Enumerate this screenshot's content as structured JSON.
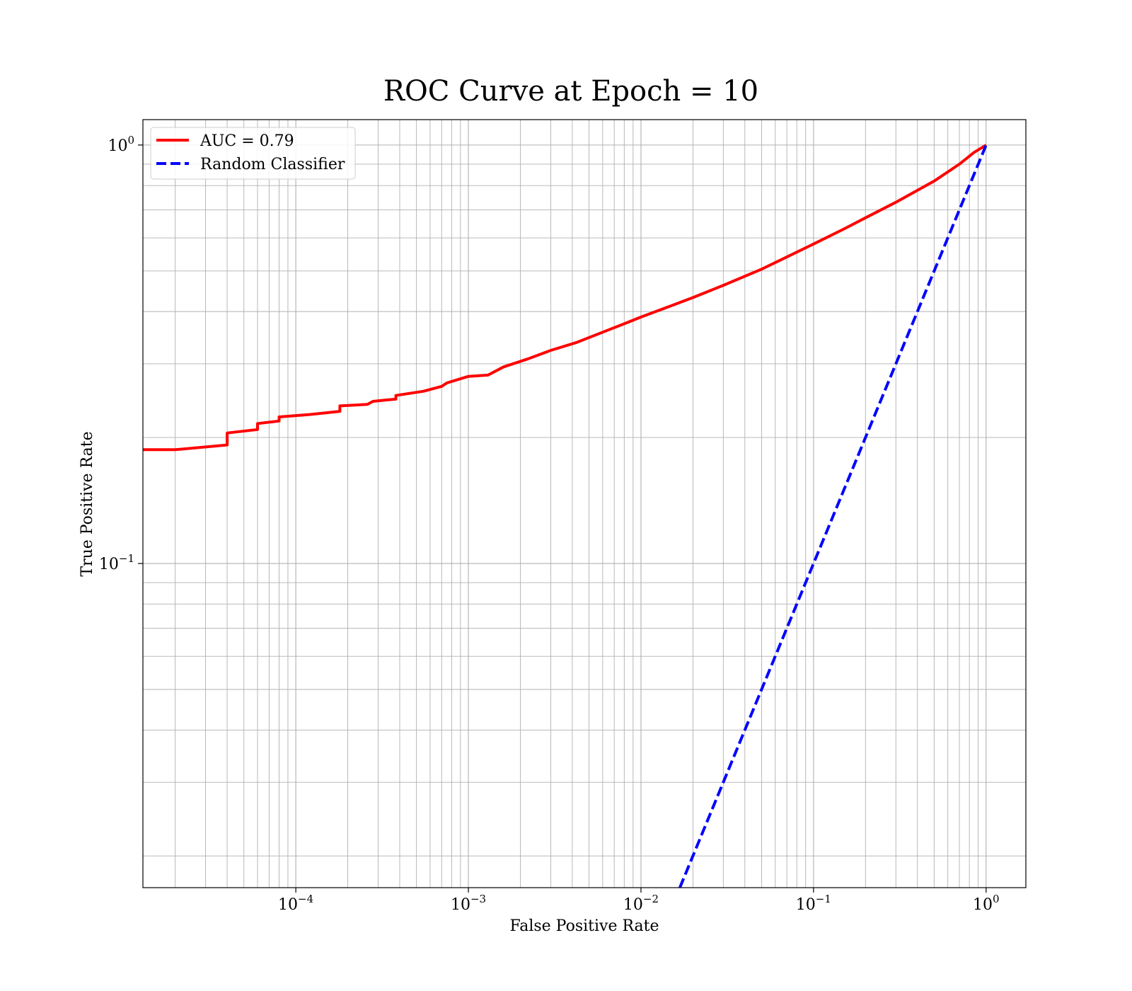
{
  "chart_data": {
    "type": "line",
    "title": "ROC Curve at Epoch = 10",
    "xlabel": "False Positive Rate",
    "ylabel": "True Positive Rate",
    "xscale": "log",
    "yscale": "log",
    "xlim": [
      1.3e-05,
      1.7
    ],
    "ylim": [
      0.0168,
      1.15
    ],
    "grid": "both major and minor",
    "legend_position": "top-left",
    "x_ticks": [
      {
        "value": 0.0001,
        "base": "10",
        "exp": "−4"
      },
      {
        "value": 0.001,
        "base": "10",
        "exp": "−3"
      },
      {
        "value": 0.01,
        "base": "10",
        "exp": "−2"
      },
      {
        "value": 0.1,
        "base": "10",
        "exp": "−1"
      },
      {
        "value": 1,
        "base": "10",
        "exp": "0"
      }
    ],
    "y_ticks": [
      {
        "value": 0.1,
        "base": "10",
        "exp": "−1"
      },
      {
        "value": 1,
        "base": "10",
        "exp": "0"
      }
    ],
    "series": [
      {
        "name": "AUC = 0.79",
        "color": "#ff0000",
        "style": "solid",
        "points": [
          [
            1.3e-05,
            0.187
          ],
          [
            2e-05,
            0.187
          ],
          [
            4e-05,
            0.192
          ],
          [
            4e-05,
            0.205
          ],
          [
            6e-05,
            0.209
          ],
          [
            6e-05,
            0.216
          ],
          [
            8e-05,
            0.219
          ],
          [
            8e-05,
            0.224
          ],
          [
            0.00012,
            0.227
          ],
          [
            0.00018,
            0.231
          ],
          [
            0.00018,
            0.238
          ],
          [
            0.00026,
            0.24
          ],
          [
            0.00028,
            0.244
          ],
          [
            0.00034,
            0.246
          ],
          [
            0.00038,
            0.247
          ],
          [
            0.00038,
            0.252
          ],
          [
            0.00055,
            0.258
          ],
          [
            0.0007,
            0.265
          ],
          [
            0.00075,
            0.27
          ],
          [
            0.001,
            0.28
          ],
          [
            0.0013,
            0.282
          ],
          [
            0.0016,
            0.295
          ],
          [
            0.0022,
            0.308
          ],
          [
            0.003,
            0.323
          ],
          [
            0.0042,
            0.337
          ],
          [
            0.006,
            0.357
          ],
          [
            0.008,
            0.374
          ],
          [
            0.01,
            0.388
          ],
          [
            0.015,
            0.413
          ],
          [
            0.02,
            0.432
          ],
          [
            0.03,
            0.462
          ],
          [
            0.05,
            0.505
          ],
          [
            0.07,
            0.54
          ],
          [
            0.1,
            0.58
          ],
          [
            0.15,
            0.63
          ],
          [
            0.2,
            0.67
          ],
          [
            0.3,
            0.73
          ],
          [
            0.5,
            0.82
          ],
          [
            0.7,
            0.9
          ],
          [
            0.85,
            0.96
          ],
          [
            1.0,
            1.0
          ]
        ]
      },
      {
        "name": "Random Classifier",
        "color": "#0000ff",
        "style": "dashed",
        "points": [
          [
            0.0168,
            0.0168
          ],
          [
            1.0,
            1.0
          ]
        ]
      }
    ]
  }
}
